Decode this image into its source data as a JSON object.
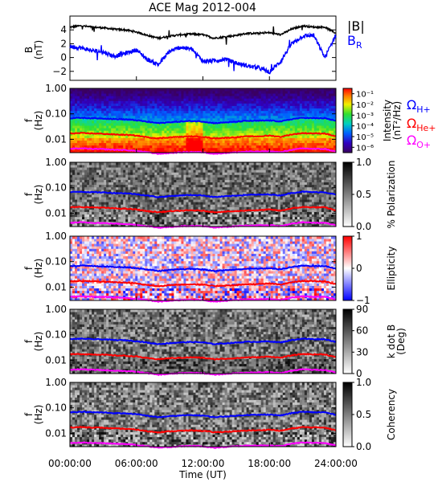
{
  "title": "ACE Mag 2012-004",
  "xlabel": "Time (UT)",
  "xticks": [
    "00:00:00",
    "06:00:00",
    "12:00:00",
    "18:00:00",
    "24:00:00"
  ],
  "legend": {
    "B_total": "|B|",
    "B_R": "B",
    "B_R_sub": "R",
    "omega_h": "Ω",
    "omega_h_sub": "H+",
    "omega_he": "Ω",
    "omega_he_sub": "He+",
    "omega_o": "Ω",
    "omega_o_sub": "O+"
  },
  "colors": {
    "B_total": "#000000",
    "B_R": "#0000ff",
    "H_line": "#0000ff",
    "He_line": "#ff0000",
    "O_line": "#ff00ff"
  },
  "chart_data": [
    {
      "type": "line",
      "panel": "magnetic_field",
      "ylabel": "B",
      "yunit": "(nT)",
      "ylim": [
        -3.3,
        6
      ],
      "yticks": [
        "4",
        "2",
        "0",
        "−2"
      ],
      "x_hours": [
        0,
        1,
        2,
        3,
        4,
        5,
        6,
        7,
        8,
        9,
        10,
        11,
        12,
        13,
        14,
        15,
        16,
        17,
        18,
        19,
        20,
        21,
        22,
        23,
        24
      ],
      "series": [
        {
          "name": "|B|",
          "values": [
            4.4,
            4.6,
            4.4,
            4.3,
            4.1,
            4.0,
            3.7,
            3.2,
            2.8,
            3.1,
            3.3,
            3.4,
            3.3,
            2.8,
            3.0,
            3.2,
            3.5,
            3.5,
            3.6,
            3.3,
            4.1,
            4.6,
            4.4,
            4.4,
            3.5
          ]
        },
        {
          "name": "B_R",
          "values": [
            1.6,
            1.4,
            1.0,
            0.8,
            0.2,
            0.6,
            1.1,
            -0.3,
            -1.0,
            0.9,
            1.5,
            1.2,
            -0.5,
            -0.5,
            -0.2,
            -0.8,
            -1.2,
            -1.5,
            -2.1,
            -0.6,
            2.0,
            3.1,
            3.2,
            0.0,
            3.3
          ]
        }
      ]
    },
    {
      "type": "heatmap",
      "panel": "power_spectral_density",
      "ylabel": "f",
      "yunit": "(Hz)",
      "ylim": [
        0.003,
        1.0
      ],
      "yticks": [
        "1.00",
        "0.10",
        "0.01"
      ],
      "colorbar": {
        "label": "Intensity",
        "unit": "(nT²/Hz)",
        "ticks": [
          "10⁻¹",
          "10⁻²",
          "10⁻³",
          "10⁻⁴",
          "10⁻⁵",
          "10⁻⁶"
        ],
        "range": [
          -6.5,
          -0.5
        ],
        "colormap": "rainbow"
      }
    },
    {
      "type": "heatmap",
      "panel": "polarization",
      "ylabel": "f",
      "yunit": "(Hz)",
      "ylim": [
        0.003,
        1.0
      ],
      "yticks": [
        "1.00",
        "0.10",
        "0.01"
      ],
      "colorbar": {
        "label": "% Polarization",
        "ticks": [
          "1.0",
          "0.5",
          "0.0"
        ],
        "range": [
          0,
          1
        ],
        "colormap": "gray"
      }
    },
    {
      "type": "heatmap",
      "panel": "ellipticity",
      "ylabel": "f",
      "yunit": "(Hz)",
      "ylim": [
        0.003,
        1.0
      ],
      "yticks": [
        "1.00",
        "0.10",
        "0.01"
      ],
      "colorbar": {
        "label": "Ellipticity",
        "ticks": [
          "1",
          "0",
          "−1"
        ],
        "range": [
          -1,
          1
        ],
        "colormap": "blue-white-red"
      }
    },
    {
      "type": "heatmap",
      "panel": "wave_normal_angle",
      "ylabel": "f",
      "yunit": "(Hz)",
      "ylim": [
        0.003,
        1.0
      ],
      "yticks": [
        "1.00",
        "0.10",
        "0.01"
      ],
      "colorbar": {
        "label": "k dot B",
        "unit": "(Deg)",
        "ticks": [
          "90",
          "60",
          "30",
          "0"
        ],
        "range": [
          0,
          90
        ],
        "colormap": "gray"
      }
    },
    {
      "type": "heatmap",
      "panel": "coherency",
      "ylabel": "f",
      "yunit": "(Hz)",
      "ylim": [
        0.003,
        1.0
      ],
      "yticks": [
        "1.00",
        "0.10",
        "0.01"
      ],
      "colorbar": {
        "label": "Coherency",
        "ticks": [
          "1.0",
          "0.5",
          "0.0"
        ],
        "range": [
          0,
          1
        ],
        "colormap": "gray"
      }
    },
    {
      "type": "line",
      "panel": "gyrofrequency_overlays",
      "x_hours": [
        0,
        1,
        2,
        3,
        4,
        5,
        6,
        7,
        8,
        9,
        10,
        11,
        12,
        13,
        14,
        15,
        16,
        17,
        18,
        19,
        20,
        21,
        22,
        23,
        24
      ],
      "series": [
        {
          "name": "H+",
          "values": [
            0.067,
            0.07,
            0.067,
            0.066,
            0.062,
            0.061,
            0.056,
            0.049,
            0.043,
            0.047,
            0.05,
            0.052,
            0.05,
            0.043,
            0.046,
            0.049,
            0.053,
            0.053,
            0.055,
            0.05,
            0.062,
            0.07,
            0.067,
            0.067,
            0.053
          ]
        },
        {
          "name": "He+",
          "values": [
            0.017,
            0.0175,
            0.017,
            0.0165,
            0.0155,
            0.015,
            0.014,
            0.012,
            0.011,
            0.012,
            0.0125,
            0.013,
            0.0125,
            0.011,
            0.0115,
            0.012,
            0.013,
            0.013,
            0.014,
            0.0125,
            0.0155,
            0.0175,
            0.017,
            0.017,
            0.013
          ]
        },
        {
          "name": "O+",
          "values": [
            0.0042,
            0.0044,
            0.0042,
            0.0041,
            0.0039,
            0.0038,
            0.0035,
            0.0031,
            0.0027,
            0.0029,
            0.0031,
            0.0032,
            0.0031,
            0.0027,
            0.0029,
            0.0031,
            0.0033,
            0.0033,
            0.0034,
            0.0031,
            0.0039,
            0.0044,
            0.0042,
            0.0042,
            0.0033
          ]
        }
      ]
    }
  ]
}
